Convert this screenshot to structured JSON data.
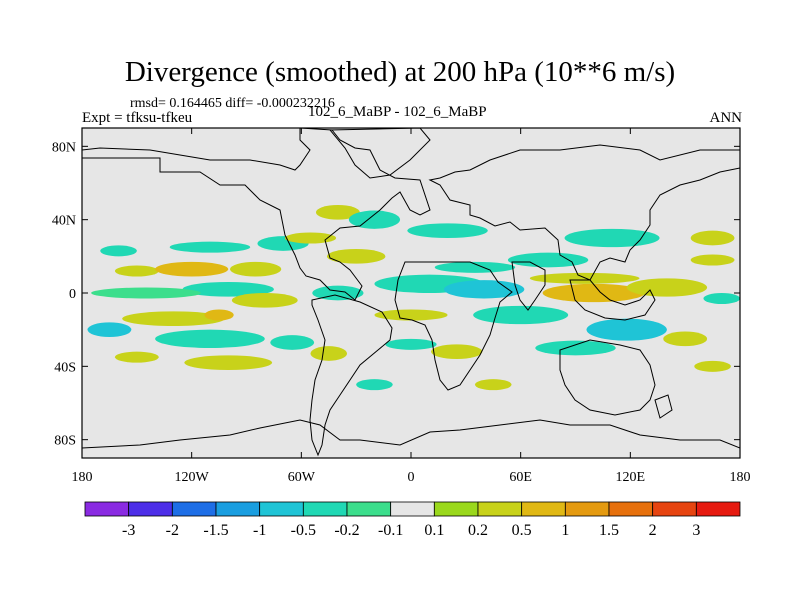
{
  "title": "Divergence (smoothed) at 200 hPa (10**6 m/s)",
  "stats": "rmsd= 0.164465 diff= -0.000232216",
  "experiment": "Expt = tfksu-tfkeu",
  "case": "102_6_MaBP - 102_6_MaBP",
  "season": "ANN",
  "map": {
    "lon_range": [
      -180,
      180
    ],
    "lat_range": [
      -90,
      90
    ],
    "lat_ticks": [
      {
        "value": 80,
        "label": "80N"
      },
      {
        "value": 40,
        "label": "40N"
      },
      {
        "value": 0,
        "label": "0"
      },
      {
        "value": -40,
        "label": "40S"
      },
      {
        "value": -80,
        "label": "80S"
      }
    ],
    "lon_ticks": [
      {
        "value": -180,
        "label": "180"
      },
      {
        "value": -120,
        "label": "120W"
      },
      {
        "value": -60,
        "label": "60W"
      },
      {
        "value": 0,
        "label": "0"
      },
      {
        "value": 60,
        "label": "60E"
      },
      {
        "value": 120,
        "label": "120E"
      },
      {
        "value": 180,
        "label": "180"
      }
    ],
    "background_color": "#e6e6e6"
  },
  "colorbar": {
    "colors": [
      "#8a2be2",
      "#4d2ee8",
      "#1e6ee6",
      "#1a9ee0",
      "#1fc4d6",
      "#20d8b4",
      "#3cde8c",
      "#e6e6e6",
      "#9ad81c",
      "#c8d21a",
      "#e0b814",
      "#e49a10",
      "#e6700c",
      "#e64410",
      "#e61a10"
    ],
    "labels": [
      "-3",
      "-2",
      "-1.5",
      "-1",
      "-0.5",
      "-0.2",
      "-0.1",
      "0.1",
      "0.2",
      "0.5",
      "1",
      "1.5",
      "2",
      "3"
    ]
  },
  "blobs": [
    {
      "lon": -150,
      "lat": 12,
      "rx": 12,
      "ry": 3,
      "color": "#c8d21a"
    },
    {
      "lon": -120,
      "lat": 13,
      "rx": 20,
      "ry": 4,
      "color": "#e0b814"
    },
    {
      "lon": -85,
      "lat": 13,
      "rx": 14,
      "ry": 4,
      "color": "#c8d21a"
    },
    {
      "lon": -110,
      "lat": 25,
      "rx": 22,
      "ry": 3,
      "color": "#20d8b4"
    },
    {
      "lon": -160,
      "lat": 23,
      "rx": 10,
      "ry": 3,
      "color": "#20d8b4"
    },
    {
      "lon": -70,
      "lat": 27,
      "rx": 14,
      "ry": 4,
      "color": "#20d8b4"
    },
    {
      "lon": -100,
      "lat": 2,
      "rx": 25,
      "ry": 4,
      "color": "#20d8b4"
    },
    {
      "lon": -145,
      "lat": 0,
      "rx": 30,
      "ry": 3,
      "color": "#3cde8c"
    },
    {
      "lon": -80,
      "lat": -4,
      "rx": 18,
      "ry": 4,
      "color": "#c8d21a"
    },
    {
      "lon": -130,
      "lat": -14,
      "rx": 28,
      "ry": 4,
      "color": "#c8d21a"
    },
    {
      "lon": -105,
      "lat": -12,
      "rx": 8,
      "ry": 3,
      "color": "#e0b814"
    },
    {
      "lon": -165,
      "lat": -20,
      "rx": 12,
      "ry": 4,
      "color": "#1fc4d6"
    },
    {
      "lon": -110,
      "lat": -25,
      "rx": 30,
      "ry": 5,
      "color": "#20d8b4"
    },
    {
      "lon": -65,
      "lat": -27,
      "rx": 12,
      "ry": 4,
      "color": "#20d8b4"
    },
    {
      "lon": -100,
      "lat": -38,
      "rx": 24,
      "ry": 4,
      "color": "#c8d21a"
    },
    {
      "lon": -150,
      "lat": -35,
      "rx": 12,
      "ry": 3,
      "color": "#c8d21a"
    },
    {
      "lon": -45,
      "lat": -33,
      "rx": 10,
      "ry": 4,
      "color": "#c8d21a"
    },
    {
      "lon": -40,
      "lat": 44,
      "rx": 12,
      "ry": 4,
      "color": "#c8d21a"
    },
    {
      "lon": -20,
      "lat": 40,
      "rx": 14,
      "ry": 5,
      "color": "#20d8b4"
    },
    {
      "lon": 20,
      "lat": 34,
      "rx": 22,
      "ry": 4,
      "color": "#20d8b4"
    },
    {
      "lon": -55,
      "lat": 30,
      "rx": 14,
      "ry": 3,
      "color": "#c8d21a"
    },
    {
      "lon": -30,
      "lat": 20,
      "rx": 16,
      "ry": 4,
      "color": "#c8d21a"
    },
    {
      "lon": 35,
      "lat": 14,
      "rx": 22,
      "ry": 3,
      "color": "#20d8b4"
    },
    {
      "lon": 10,
      "lat": 5,
      "rx": 30,
      "ry": 5,
      "color": "#20d8b4"
    },
    {
      "lon": 40,
      "lat": 2,
      "rx": 22,
      "ry": 5,
      "color": "#1fc4d6"
    },
    {
      "lon": -40,
      "lat": 0,
      "rx": 14,
      "ry": 4,
      "color": "#20d8b4"
    },
    {
      "lon": 100,
      "lat": 0,
      "rx": 28,
      "ry": 5,
      "color": "#e0b814"
    },
    {
      "lon": 140,
      "lat": 3,
      "rx": 22,
      "ry": 5,
      "color": "#c8d21a"
    },
    {
      "lon": 95,
      "lat": 8,
      "rx": 30,
      "ry": 3,
      "color": "#c8d21a"
    },
    {
      "lon": 75,
      "lat": 18,
      "rx": 22,
      "ry": 4,
      "color": "#20d8b4"
    },
    {
      "lon": 110,
      "lat": 30,
      "rx": 26,
      "ry": 5,
      "color": "#20d8b4"
    },
    {
      "lon": 165,
      "lat": 30,
      "rx": 12,
      "ry": 4,
      "color": "#c8d21a"
    },
    {
      "lon": 165,
      "lat": 18,
      "rx": 12,
      "ry": 3,
      "color": "#c8d21a"
    },
    {
      "lon": 170,
      "lat": -3,
      "rx": 10,
      "ry": 3,
      "color": "#20d8b4"
    },
    {
      "lon": 60,
      "lat": -12,
      "rx": 26,
      "ry": 5,
      "color": "#20d8b4"
    },
    {
      "lon": 118,
      "lat": -20,
      "rx": 22,
      "ry": 6,
      "color": "#1fc4d6"
    },
    {
      "lon": 90,
      "lat": -30,
      "rx": 22,
      "ry": 4,
      "color": "#20d8b4"
    },
    {
      "lon": 150,
      "lat": -25,
      "rx": 12,
      "ry": 4,
      "color": "#c8d21a"
    },
    {
      "lon": 165,
      "lat": -40,
      "rx": 10,
      "ry": 3,
      "color": "#c8d21a"
    },
    {
      "lon": 25,
      "lat": -32,
      "rx": 14,
      "ry": 4,
      "color": "#c8d21a"
    },
    {
      "lon": 0,
      "lat": -28,
      "rx": 14,
      "ry": 3,
      "color": "#20d8b4"
    },
    {
      "lon": 0,
      "lat": -12,
      "rx": 20,
      "ry": 3,
      "color": "#c8d21a"
    },
    {
      "lon": -20,
      "lat": -50,
      "rx": 10,
      "ry": 3,
      "color": "#20d8b4"
    },
    {
      "lon": 45,
      "lat": -50,
      "rx": 10,
      "ry": 3,
      "color": "#c8d21a"
    }
  ]
}
